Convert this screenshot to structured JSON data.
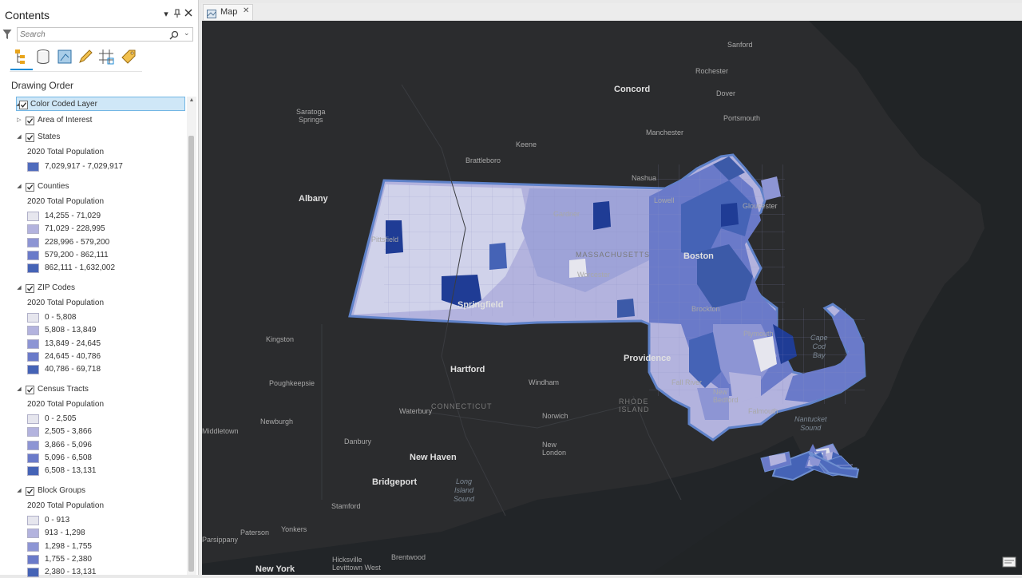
{
  "contents": {
    "title": "Contents",
    "search_placeholder": "Search",
    "drawing_order": "Drawing Order",
    "layers": [
      {
        "id": "color-coded-layer",
        "label": "Color Coded Layer"
      },
      {
        "id": "area-of-interest",
        "label": "Area of Interest"
      },
      {
        "id": "states",
        "label": "States",
        "field": "2020 Total Population",
        "classes": [
          {
            "range": "7,029,917 - 7,029,917",
            "color": "#4f6bbd"
          }
        ]
      },
      {
        "id": "counties",
        "label": "Counties",
        "field": "2020 Total Population",
        "classes": [
          {
            "range": "14,255 - 71,029",
            "color": "#e6e6ee"
          },
          {
            "range": "71,029 - 228,995",
            "color": "#b3b3de"
          },
          {
            "range": "228,996 - 579,200",
            "color": "#8d95d4"
          },
          {
            "range": "579,200 - 862,111",
            "color": "#6a7ac9"
          },
          {
            "range": "862,111 - 1,632,002",
            "color": "#4563b6"
          }
        ]
      },
      {
        "id": "zip-codes",
        "label": "ZIP Codes",
        "field": "2020 Total Population",
        "classes": [
          {
            "range": "0 - 5,808",
            "color": "#e6e6ee"
          },
          {
            "range": "5,808 - 13,849",
            "color": "#b3b3de"
          },
          {
            "range": "13,849 - 24,645",
            "color": "#8d95d4"
          },
          {
            "range": "24,645 - 40,786",
            "color": "#6a7ac9"
          },
          {
            "range": "40,786 - 69,718",
            "color": "#4563b6"
          }
        ]
      },
      {
        "id": "census-tracts",
        "label": "Census Tracts",
        "field": "2020 Total Population",
        "classes": [
          {
            "range": "0 - 2,505",
            "color": "#e6e6ee"
          },
          {
            "range": "2,505 - 3,866",
            "color": "#b3b3de"
          },
          {
            "range": "3,866 - 5,096",
            "color": "#8d95d4"
          },
          {
            "range": "5,096 - 6,508",
            "color": "#6a7ac9"
          },
          {
            "range": "6,508 - 13,131",
            "color": "#4563b6"
          }
        ]
      },
      {
        "id": "block-groups",
        "label": "Block Groups",
        "field": "2020 Total Population",
        "classes": [
          {
            "range": "0 - 913",
            "color": "#e6e6ee"
          },
          {
            "range": "913 - 1,298",
            "color": "#b3b3de"
          },
          {
            "range": "1,298 - 1,755",
            "color": "#8d95d4"
          },
          {
            "range": "1,755 - 2,380",
            "color": "#6a7ac9"
          },
          {
            "range": "2,380 - 13,131",
            "color": "#4563b6"
          }
        ]
      }
    ]
  },
  "map": {
    "tab_label": "Map",
    "cities": {
      "sanford": "Sanford",
      "rochester": "Rochester",
      "dover": "Dover",
      "portsmouth": "Portsmouth",
      "concord": "Concord",
      "manchester": "Manchester",
      "keene": "Keene",
      "brattleboro": "Brattleboro",
      "nashua": "Nashua",
      "saratoga": "Saratoga\nSprings",
      "albany": "Albany",
      "lowell": "Lowell",
      "gloucester": "Gloucester",
      "gardner": "Gardner",
      "pittsfield": "Pittsfield",
      "massachusetts": "MASSACHUSETTS",
      "boston": "Boston",
      "worcester": "Worcester",
      "springfield": "Springfield",
      "brockton": "Brockton",
      "plymouth": "Plymouth",
      "kingston": "Kingston",
      "hartford": "Hartford",
      "providence": "Providence",
      "windham": "Windham",
      "fall_river": "Fall River",
      "new_bedford": "New\nBedford",
      "poughkeepsie": "Poughkeepsie",
      "connecticut": "CONNECTICUT",
      "rhode_island": "RHODE\nISLAND",
      "waterbury": "Waterbury",
      "norwich": "Norwich",
      "falmouth": "Falmouth",
      "newburgh": "Newburgh",
      "middletown": "Middletown",
      "danbury": "Danbury",
      "new_london": "New\nLondon",
      "new_haven": "New Haven",
      "bridgeport": "Bridgeport",
      "stamford": "Stamford",
      "paterson": "Paterson",
      "yonkers": "Yonkers",
      "parsippany": "Parsippany",
      "hicksville": "Hicksville\nLevittown West",
      "brentwood": "Brentwood",
      "new_york": "New York"
    },
    "water": {
      "cape_cod_bay": "Cape\nCod\nBay",
      "nantucket_sound": "Nantucket\nSound",
      "long_island_sound": "Long\nIsland\nSound"
    }
  }
}
